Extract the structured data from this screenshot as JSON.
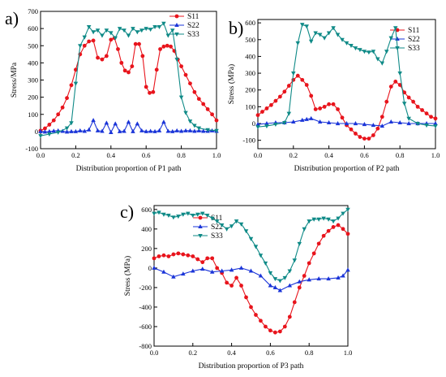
{
  "chart_data": [
    {
      "panel_label": "a)",
      "type": "line",
      "xlabel": "Distribution proportion of P1 path",
      "ylabel": "Stress/MPa",
      "xlim": [
        0.0,
        1.0
      ],
      "ylim": [
        -100,
        700
      ],
      "xticks": [
        "0.0",
        "0.2",
        "0.4",
        "0.6",
        "0.8",
        "1.0"
      ],
      "yticks": [
        "-100",
        "0",
        "100",
        "200",
        "300",
        "400",
        "500",
        "600",
        "700"
      ],
      "legend_position": "top-right",
      "grid": false,
      "series": [
        {
          "name": "S11",
          "color": "#e8141c",
          "marker": "circle",
          "x": [
            0,
            0.025,
            0.05,
            0.075,
            0.1,
            0.125,
            0.15,
            0.175,
            0.2,
            0.225,
            0.25,
            0.275,
            0.3,
            0.325,
            0.35,
            0.375,
            0.4,
            0.42,
            0.44,
            0.46,
            0.48,
            0.5,
            0.52,
            0.54,
            0.56,
            0.58,
            0.6,
            0.62,
            0.64,
            0.66,
            0.68,
            0.7,
            0.72,
            0.74,
            0.76,
            0.78,
            0.8,
            0.825,
            0.85,
            0.875,
            0.9,
            0.925,
            0.95,
            0.975,
            1.0
          ],
          "y": [
            5,
            18,
            40,
            65,
            100,
            140,
            195,
            270,
            360,
            450,
            500,
            525,
            530,
            430,
            420,
            440,
            535,
            545,
            480,
            400,
            355,
            345,
            380,
            510,
            510,
            440,
            260,
            225,
            230,
            360,
            480,
            495,
            500,
            495,
            470,
            420,
            380,
            330,
            280,
            230,
            190,
            160,
            130,
            100,
            65
          ]
        },
        {
          "name": "S22",
          "color": "#1a34d8",
          "marker": "triangle-up",
          "x": [
            0,
            0.025,
            0.05,
            0.075,
            0.1,
            0.125,
            0.15,
            0.175,
            0.2,
            0.225,
            0.25,
            0.275,
            0.3,
            0.325,
            0.35,
            0.375,
            0.4,
            0.425,
            0.45,
            0.475,
            0.5,
            0.525,
            0.55,
            0.575,
            0.6,
            0.625,
            0.65,
            0.675,
            0.7,
            0.725,
            0.75,
            0.775,
            0.8,
            0.825,
            0.85,
            0.875,
            0.9,
            0.925,
            0.95,
            0.975,
            1.0
          ],
          "y": [
            0,
            -2,
            0,
            3,
            5,
            2,
            -2,
            0,
            0,
            5,
            2,
            10,
            65,
            5,
            2,
            50,
            -5,
            45,
            0,
            2,
            55,
            0,
            45,
            5,
            0,
            2,
            0,
            5,
            55,
            2,
            0,
            5,
            2,
            5,
            5,
            2,
            5,
            2,
            2,
            5,
            2
          ]
        },
        {
          "name": "S33",
          "color": "#0f8a87",
          "marker": "triangle-down",
          "x": [
            0,
            0.05,
            0.1,
            0.15,
            0.175,
            0.2,
            0.225,
            0.25,
            0.275,
            0.3,
            0.325,
            0.35,
            0.375,
            0.4,
            0.425,
            0.45,
            0.475,
            0.5,
            0.525,
            0.55,
            0.575,
            0.6,
            0.625,
            0.65,
            0.675,
            0.7,
            0.725,
            0.75,
            0.775,
            0.8,
            0.825,
            0.85,
            0.875,
            0.9,
            0.95,
            1.0
          ],
          "y": [
            -25,
            -15,
            -5,
            20,
            50,
            280,
            500,
            550,
            610,
            580,
            590,
            560,
            590,
            575,
            545,
            600,
            590,
            560,
            600,
            580,
            590,
            600,
            595,
            610,
            610,
            630,
            560,
            590,
            420,
            200,
            110,
            60,
            35,
            20,
            10,
            5
          ]
        }
      ]
    },
    {
      "panel_label": "b)",
      "type": "line",
      "xlabel": "Distribution proportion of P2 path",
      "ylabel": "Stress (MPa)",
      "xlim": [
        0.0,
        1.0
      ],
      "ylim": [
        -150,
        620
      ],
      "xticks": [
        "0.0",
        "0.2",
        "0.4",
        "0.6",
        "0.8",
        "1.0"
      ],
      "yticks": [
        "-100",
        "0",
        "100",
        "200",
        "300",
        "400",
        "500",
        "600"
      ],
      "legend_position": "top-right",
      "grid": false,
      "series": [
        {
          "name": "S11",
          "color": "#e8141c",
          "marker": "circle",
          "x": [
            0,
            0.025,
            0.05,
            0.075,
            0.1,
            0.125,
            0.15,
            0.175,
            0.2,
            0.225,
            0.25,
            0.275,
            0.3,
            0.325,
            0.35,
            0.375,
            0.4,
            0.425,
            0.45,
            0.475,
            0.5,
            0.525,
            0.55,
            0.575,
            0.6,
            0.625,
            0.65,
            0.675,
            0.7,
            0.725,
            0.75,
            0.775,
            0.8,
            0.825,
            0.85,
            0.875,
            0.9,
            0.925,
            0.95,
            0.975,
            1.0
          ],
          "y": [
            50,
            70,
            90,
            110,
            135,
            160,
            190,
            225,
            260,
            285,
            260,
            230,
            165,
            85,
            90,
            100,
            115,
            115,
            85,
            35,
            -10,
            -35,
            -60,
            -80,
            -90,
            -90,
            -70,
            -30,
            40,
            130,
            220,
            250,
            230,
            185,
            155,
            130,
            100,
            80,
            60,
            40,
            30
          ]
        },
        {
          "name": "S22",
          "color": "#1a34d8",
          "marker": "triangle-up",
          "x": [
            0,
            0.05,
            0.1,
            0.15,
            0.2,
            0.25,
            0.275,
            0.3,
            0.35,
            0.4,
            0.45,
            0.5,
            0.55,
            0.6,
            0.65,
            0.7,
            0.75,
            0.8,
            0.85,
            0.9,
            0.95,
            1.0
          ],
          "y": [
            -5,
            0,
            5,
            5,
            10,
            20,
            25,
            30,
            10,
            5,
            0,
            0,
            0,
            -5,
            -10,
            -15,
            10,
            5,
            0,
            0,
            0,
            0
          ]
        },
        {
          "name": "S33",
          "color": "#0f8a87",
          "marker": "triangle-down",
          "x": [
            0,
            0.05,
            0.1,
            0.15,
            0.175,
            0.2,
            0.225,
            0.25,
            0.275,
            0.3,
            0.325,
            0.35,
            0.375,
            0.4,
            0.425,
            0.45,
            0.475,
            0.5,
            0.525,
            0.55,
            0.575,
            0.6,
            0.625,
            0.65,
            0.675,
            0.7,
            0.725,
            0.75,
            0.775,
            0.8,
            0.825,
            0.85,
            0.9,
            0.95,
            1.0
          ],
          "y": [
            -20,
            -15,
            -5,
            5,
            60,
            300,
            480,
            590,
            580,
            490,
            540,
            530,
            510,
            540,
            570,
            530,
            500,
            480,
            465,
            450,
            440,
            430,
            425,
            430,
            385,
            360,
            430,
            510,
            570,
            300,
            120,
            30,
            0,
            -10,
            -15
          ]
        }
      ]
    },
    {
      "panel_label": "c)",
      "type": "line",
      "xlabel": "Distribution proportion of P3 path",
      "ylabel": "Stress (MPa)",
      "xlim": [
        0.0,
        1.0
      ],
      "ylim": [
        -800,
        640
      ],
      "xticks": [
        "0.0",
        "0.2",
        "0.4",
        "0.6",
        "0.8",
        "1.0"
      ],
      "yticks": [
        "-800",
        "-600",
        "-400",
        "-200",
        "0",
        "200",
        "400",
        "600"
      ],
      "legend_position": "top-left",
      "grid": false,
      "series": [
        {
          "name": "S11",
          "color": "#e8141c",
          "marker": "circle",
          "x": [
            0,
            0.025,
            0.05,
            0.075,
            0.1,
            0.125,
            0.15,
            0.175,
            0.2,
            0.225,
            0.25,
            0.275,
            0.3,
            0.325,
            0.35,
            0.375,
            0.4,
            0.425,
            0.45,
            0.475,
            0.5,
            0.525,
            0.55,
            0.575,
            0.6,
            0.625,
            0.65,
            0.675,
            0.7,
            0.725,
            0.75,
            0.775,
            0.8,
            0.825,
            0.85,
            0.875,
            0.9,
            0.925,
            0.95,
            0.975,
            1.0
          ],
          "y": [
            100,
            120,
            130,
            120,
            140,
            150,
            140,
            130,
            120,
            90,
            60,
            100,
            100,
            0,
            -50,
            -150,
            -180,
            -100,
            -180,
            -300,
            -400,
            -480,
            -540,
            -600,
            -640,
            -660,
            -650,
            -600,
            -500,
            -350,
            -200,
            -80,
            50,
            150,
            250,
            330,
            380,
            420,
            440,
            400,
            350
          ]
        },
        {
          "name": "S22",
          "color": "#1a34d8",
          "marker": "triangle-up",
          "x": [
            0,
            0.05,
            0.1,
            0.15,
            0.2,
            0.25,
            0.3,
            0.35,
            0.4,
            0.45,
            0.5,
            0.55,
            0.6,
            0.625,
            0.65,
            0.7,
            0.75,
            0.8,
            0.85,
            0.9,
            0.95,
            0.975,
            1.0
          ],
          "y": [
            0,
            -40,
            -90,
            -60,
            -30,
            -10,
            -40,
            -30,
            -20,
            0,
            -30,
            -80,
            -180,
            -200,
            -230,
            -180,
            -140,
            -120,
            -110,
            -110,
            -100,
            -80,
            -20
          ]
        },
        {
          "name": "S33",
          "color": "#0f8a87",
          "marker": "triangle-down",
          "x": [
            0,
            0.025,
            0.05,
            0.075,
            0.1,
            0.125,
            0.15,
            0.175,
            0.2,
            0.225,
            0.25,
            0.275,
            0.3,
            0.325,
            0.35,
            0.375,
            0.4,
            0.425,
            0.45,
            0.475,
            0.5,
            0.525,
            0.55,
            0.575,
            0.6,
            0.625,
            0.65,
            0.675,
            0.7,
            0.725,
            0.75,
            0.775,
            0.8,
            0.825,
            0.85,
            0.875,
            0.9,
            0.925,
            0.95,
            0.975,
            1.0
          ],
          "y": [
            560,
            570,
            550,
            540,
            520,
            530,
            550,
            560,
            540,
            550,
            560,
            540,
            510,
            480,
            440,
            400,
            430,
            480,
            450,
            380,
            300,
            220,
            130,
            50,
            -50,
            -110,
            -130,
            -100,
            -30,
            80,
            250,
            400,
            480,
            500,
            500,
            510,
            500,
            480,
            510,
            560,
            600
          ]
        }
      ]
    }
  ]
}
